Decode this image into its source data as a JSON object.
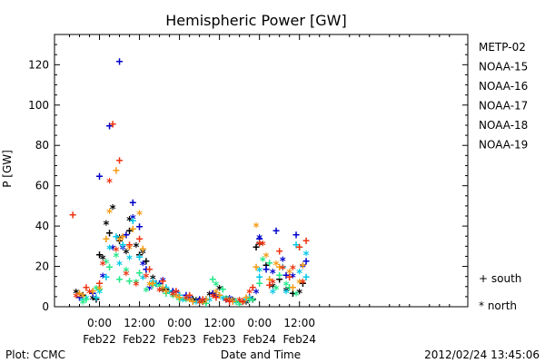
{
  "chart_data": {
    "type": "scatter",
    "title": "Hemispheric Power [GW]",
    "ylabel": "P [GW]",
    "xlabel": "Date and Time",
    "ylim": [
      0,
      135
    ],
    "yticks": [
      0,
      20,
      40,
      60,
      80,
      100,
      120
    ],
    "x_unit": "hours from 2012-02-22 00:00 UT",
    "xlim": [
      -13.5,
      110.5
    ],
    "xticks": [
      {
        "x": 0,
        "time": "0:00",
        "date": "Feb22"
      },
      {
        "x": 12,
        "time": "12:00",
        "date": "Feb22"
      },
      {
        "x": 24,
        "time": "0:00",
        "date": "Feb23"
      },
      {
        "x": 36,
        "time": "12:00",
        "date": "Feb23"
      },
      {
        "x": 48,
        "time": "0:00",
        "date": "Feb24"
      },
      {
        "x": 60,
        "time": "12:00",
        "date": "Feb24"
      }
    ],
    "legend_position": "right",
    "marker_legend": [
      {
        "symbol": "+",
        "label": "south"
      },
      {
        "symbol": "*",
        "label": "north"
      }
    ],
    "series": [
      {
        "name": "METP-02",
        "color": "#000000",
        "south": [
          [
            -5,
            6
          ],
          [
            -1,
            4
          ],
          [
            0,
            26
          ],
          [
            3,
            37
          ],
          [
            6,
            33
          ],
          [
            9,
            38
          ],
          [
            12,
            26
          ],
          [
            14,
            23
          ],
          [
            17,
            12
          ],
          [
            20,
            9
          ],
          [
            24,
            6
          ],
          [
            28,
            4
          ],
          [
            31,
            3
          ],
          [
            35,
            6
          ],
          [
            38,
            4
          ],
          [
            42,
            3
          ],
          [
            46,
            4
          ],
          [
            47,
            30
          ],
          [
            50,
            21
          ],
          [
            54,
            14
          ],
          [
            58,
            7
          ],
          [
            61,
            12
          ]
        ],
        "north": [
          [
            -7,
            8
          ],
          [
            -2,
            5
          ],
          [
            1,
            25
          ],
          [
            2,
            42
          ],
          [
            4,
            50
          ],
          [
            6,
            35
          ],
          [
            8,
            28
          ],
          [
            9,
            44
          ],
          [
            11,
            31
          ],
          [
            13,
            28
          ],
          [
            16,
            15
          ],
          [
            19,
            9
          ],
          [
            22,
            7
          ],
          [
            26,
            5
          ],
          [
            29,
            4
          ],
          [
            33,
            7
          ],
          [
            36,
            10
          ],
          [
            40,
            4
          ],
          [
            44,
            3
          ],
          [
            48,
            32
          ],
          [
            52,
            11
          ],
          [
            56,
            9
          ],
          [
            60,
            8
          ]
        ]
      },
      {
        "name": "NOAA-15",
        "color": "#0000cc",
        "south": [
          [
            -6,
            5
          ],
          [
            -2,
            7
          ],
          [
            0,
            65
          ],
          [
            3,
            90
          ],
          [
            6,
            122
          ],
          [
            8,
            36
          ],
          [
            10,
            52
          ],
          [
            12,
            40
          ],
          [
            14,
            19
          ],
          [
            18,
            12
          ],
          [
            22,
            8
          ],
          [
            26,
            6
          ],
          [
            30,
            4
          ],
          [
            34,
            7
          ],
          [
            38,
            4
          ],
          [
            42,
            3
          ],
          [
            45,
            5
          ],
          [
            48,
            34
          ],
          [
            50,
            19
          ],
          [
            53,
            38
          ],
          [
            56,
            16
          ],
          [
            59,
            36
          ],
          [
            62,
            23
          ]
        ],
        "north": [
          [
            -5,
            6
          ],
          [
            1,
            16
          ],
          [
            4,
            30
          ],
          [
            7,
            30
          ],
          [
            10,
            45
          ],
          [
            13,
            22
          ],
          [
            15,
            10
          ],
          [
            19,
            14
          ],
          [
            23,
            8
          ],
          [
            27,
            5
          ],
          [
            31,
            4
          ],
          [
            35,
            6
          ],
          [
            39,
            5
          ],
          [
            43,
            3
          ],
          [
            47,
            8
          ],
          [
            48,
            35
          ],
          [
            52,
            18
          ],
          [
            55,
            24
          ],
          [
            58,
            16
          ],
          [
            61,
            21
          ]
        ]
      },
      {
        "name": "NOAA-16",
        "color": "#00c8e8",
        "south": [
          [
            -5,
            4
          ],
          [
            -1,
            5
          ],
          [
            2,
            15
          ],
          [
            5,
            35
          ],
          [
            7,
            31
          ],
          [
            10,
            43
          ],
          [
            12,
            25
          ],
          [
            16,
            13
          ],
          [
            20,
            10
          ],
          [
            24,
            6
          ],
          [
            28,
            3
          ],
          [
            32,
            4
          ],
          [
            36,
            6
          ],
          [
            40,
            3
          ],
          [
            44,
            4
          ],
          [
            48,
            15
          ],
          [
            51,
            14
          ],
          [
            55,
            20
          ],
          [
            59,
            31
          ],
          [
            62,
            15
          ]
        ],
        "north": [
          [
            -4,
            5
          ],
          [
            0,
            8
          ],
          [
            3,
            30
          ],
          [
            6,
            22
          ],
          [
            9,
            25
          ],
          [
            13,
            15
          ],
          [
            17,
            12
          ],
          [
            21,
            8
          ],
          [
            25,
            4
          ],
          [
            29,
            3
          ],
          [
            33,
            4
          ],
          [
            37,
            5
          ],
          [
            41,
            3
          ],
          [
            45,
            5
          ],
          [
            48,
            19
          ],
          [
            52,
            8
          ],
          [
            56,
            8
          ],
          [
            60,
            18
          ],
          [
            62,
            27
          ]
        ]
      },
      {
        "name": "NOAA-17",
        "color": "#22e888",
        "south": [
          [
            -4,
            4
          ],
          [
            0,
            9
          ],
          [
            3,
            20
          ],
          [
            6,
            14
          ],
          [
            9,
            13
          ],
          [
            12,
            17
          ],
          [
            16,
            11
          ],
          [
            20,
            7
          ],
          [
            24,
            4
          ],
          [
            28,
            3
          ],
          [
            32,
            2
          ],
          [
            34,
            14
          ],
          [
            37,
            9
          ],
          [
            41,
            3
          ],
          [
            45,
            4
          ],
          [
            48,
            12
          ],
          [
            51,
            22
          ],
          [
            54,
            16
          ],
          [
            57,
            10
          ],
          [
            60,
            30
          ]
        ],
        "north": [
          [
            -5,
            3
          ],
          [
            -1,
            10
          ],
          [
            2,
            23
          ],
          [
            5,
            26
          ],
          [
            8,
            19
          ],
          [
            11,
            13
          ],
          [
            14,
            9
          ],
          [
            18,
            11
          ],
          [
            22,
            6
          ],
          [
            26,
            4
          ],
          [
            30,
            3
          ],
          [
            35,
            12
          ],
          [
            38,
            5
          ],
          [
            42,
            2
          ],
          [
            46,
            4
          ],
          [
            49,
            24
          ],
          [
            53,
            10
          ],
          [
            56,
            12
          ],
          [
            59,
            7
          ]
        ]
      },
      {
        "name": "NOAA-18",
        "color": "#f49a14",
        "south": [
          [
            -6,
            7
          ],
          [
            -2,
            8
          ],
          [
            2,
            34
          ],
          [
            5,
            68
          ],
          [
            7,
            35
          ],
          [
            10,
            39
          ],
          [
            13,
            29
          ],
          [
            16,
            12
          ],
          [
            20,
            8
          ],
          [
            24,
            5
          ],
          [
            28,
            3
          ],
          [
            32,
            4
          ],
          [
            36,
            6
          ],
          [
            40,
            3
          ],
          [
            44,
            5
          ],
          [
            47,
            20
          ],
          [
            51,
            14
          ],
          [
            54,
            20
          ],
          [
            58,
            10
          ],
          [
            61,
            21
          ]
        ],
        "north": [
          [
            -5,
            6
          ],
          [
            0,
            10
          ],
          [
            3,
            48
          ],
          [
            6,
            34
          ],
          [
            9,
            30
          ],
          [
            12,
            47
          ],
          [
            15,
            12
          ],
          [
            19,
            10
          ],
          [
            23,
            6
          ],
          [
            27,
            4
          ],
          [
            31,
            3
          ],
          [
            35,
            8
          ],
          [
            39,
            4
          ],
          [
            43,
            3
          ],
          [
            47,
            41
          ],
          [
            50,
            26
          ],
          [
            53,
            22
          ],
          [
            57,
            18
          ],
          [
            60,
            13
          ]
        ]
      },
      {
        "name": "NOAA-19",
        "color": "#ee3410",
        "south": [
          [
            -8,
            46
          ],
          [
            -4,
            10
          ],
          [
            0,
            12
          ],
          [
            4,
            91
          ],
          [
            6,
            73
          ],
          [
            9,
            31
          ],
          [
            12,
            34
          ],
          [
            15,
            19
          ],
          [
            19,
            13
          ],
          [
            23,
            8
          ],
          [
            27,
            6
          ],
          [
            31,
            4
          ],
          [
            35,
            5
          ],
          [
            39,
            3
          ],
          [
            43,
            3
          ],
          [
            46,
            10
          ],
          [
            48,
            32
          ],
          [
            51,
            11
          ],
          [
            54,
            28
          ],
          [
            57,
            15
          ],
          [
            60,
            30
          ],
          [
            62,
            33
          ]
        ],
        "north": [
          [
            -7,
            6
          ],
          [
            -3,
            8
          ],
          [
            1,
            22
          ],
          [
            3,
            63
          ],
          [
            5,
            29
          ],
          [
            8,
            17
          ],
          [
            11,
            12
          ],
          [
            14,
            16
          ],
          [
            18,
            9
          ],
          [
            22,
            7
          ],
          [
            26,
            5
          ],
          [
            30,
            3
          ],
          [
            34,
            6
          ],
          [
            38,
            4
          ],
          [
            42,
            4
          ],
          [
            45,
            8
          ],
          [
            49,
            32
          ],
          [
            52,
            13
          ],
          [
            55,
            20
          ],
          [
            58,
            20
          ],
          [
            61,
            13
          ]
        ]
      }
    ]
  },
  "footer": {
    "plot_credit": "Plot: CCMC",
    "timestamp": "2012/02/24 13:45:06"
  }
}
